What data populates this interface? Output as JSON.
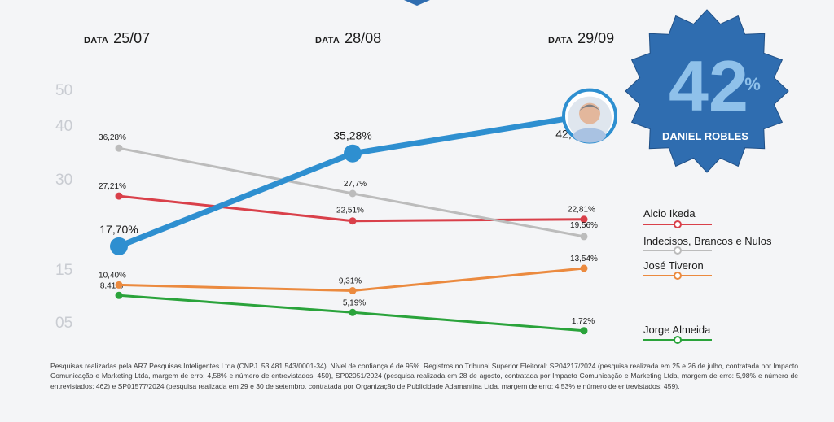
{
  "dates": [
    {
      "label": "DATA",
      "value": "25/07"
    },
    {
      "label": "DATA",
      "value": "28/08"
    },
    {
      "label": "DATA",
      "value": "29/09"
    }
  ],
  "y_axis_labels": [
    "50",
    "40",
    "30",
    "15",
    "05"
  ],
  "badge": {
    "number": "42",
    "percent": "%",
    "name": "DANIEL ROBLES",
    "color": "#2f6db0"
  },
  "chart_data": {
    "type": "line",
    "categories": [
      "25/07",
      "28/08",
      "29/09"
    ],
    "series": [
      {
        "name": "Daniel Robles",
        "values": [
          17.7,
          35.28,
          42.37
        ],
        "labels": [
          "17,70%",
          "35,28%",
          "42,37%"
        ],
        "color": "#2e8fd0"
      },
      {
        "name": "Indecisos, Brancos e Nulos",
        "values": [
          36.28,
          27.7,
          19.56
        ],
        "labels": [
          "36,28%",
          "27,7%",
          "19,56%"
        ],
        "color": "#bcbcbc"
      },
      {
        "name": "Alcio Ikeda",
        "values": [
          27.21,
          22.51,
          22.81
        ],
        "labels": [
          "27,21%",
          "22,51%",
          "22,81%"
        ],
        "color": "#d9404a"
      },
      {
        "name": "José Tiveron",
        "values": [
          10.4,
          9.31,
          13.54
        ],
        "labels": [
          "10,40%",
          "9,31%",
          "13,54%"
        ],
        "color": "#eb8a3f"
      },
      {
        "name": "Jorge Almeida",
        "values": [
          8.41,
          5.19,
          1.72
        ],
        "labels": [
          "8,41%",
          "5,19%",
          "1,72%"
        ],
        "color": "#2aa33b"
      }
    ]
  },
  "legend": [
    {
      "label": "Alcio Ikeda",
      "color": "#d9404a"
    },
    {
      "label": "Indecisos, Brancos e Nulos",
      "color": "#bcbcbc"
    },
    {
      "label": "José Tiveron",
      "color": "#eb8a3f"
    },
    {
      "label": "Jorge Almeida",
      "color": "#2aa33b"
    }
  ],
  "footnote": "Pesquisas realizadas pela AR7 Pesquisas Inteligentes Ltda (CNPJ. 53.481.543/0001-34). Nível de confiança é de 95%. Registros no Tribunal Superior Eleitoral: SP04217/2024 (pesquisa realizada em 25 e 26 de julho, contratada por Impacto Comunicação e Marketing Ltda, margem de erro: 4,58% e número de entrevistados: 450), SP02051/2024 (pesquisa realizada em 28 de agosto, contratada por Impacto Comunicação e Marketing Ltda, margem de erro: 5,98% e número de entrevistados: 462) e SP01577/2024 (pesquisa realizada em 29 e 30 de setembro, contratada por Organização de Publicidade Adamantina Ltda, margem de erro: 4,53% e número de entrevistados: 459)."
}
